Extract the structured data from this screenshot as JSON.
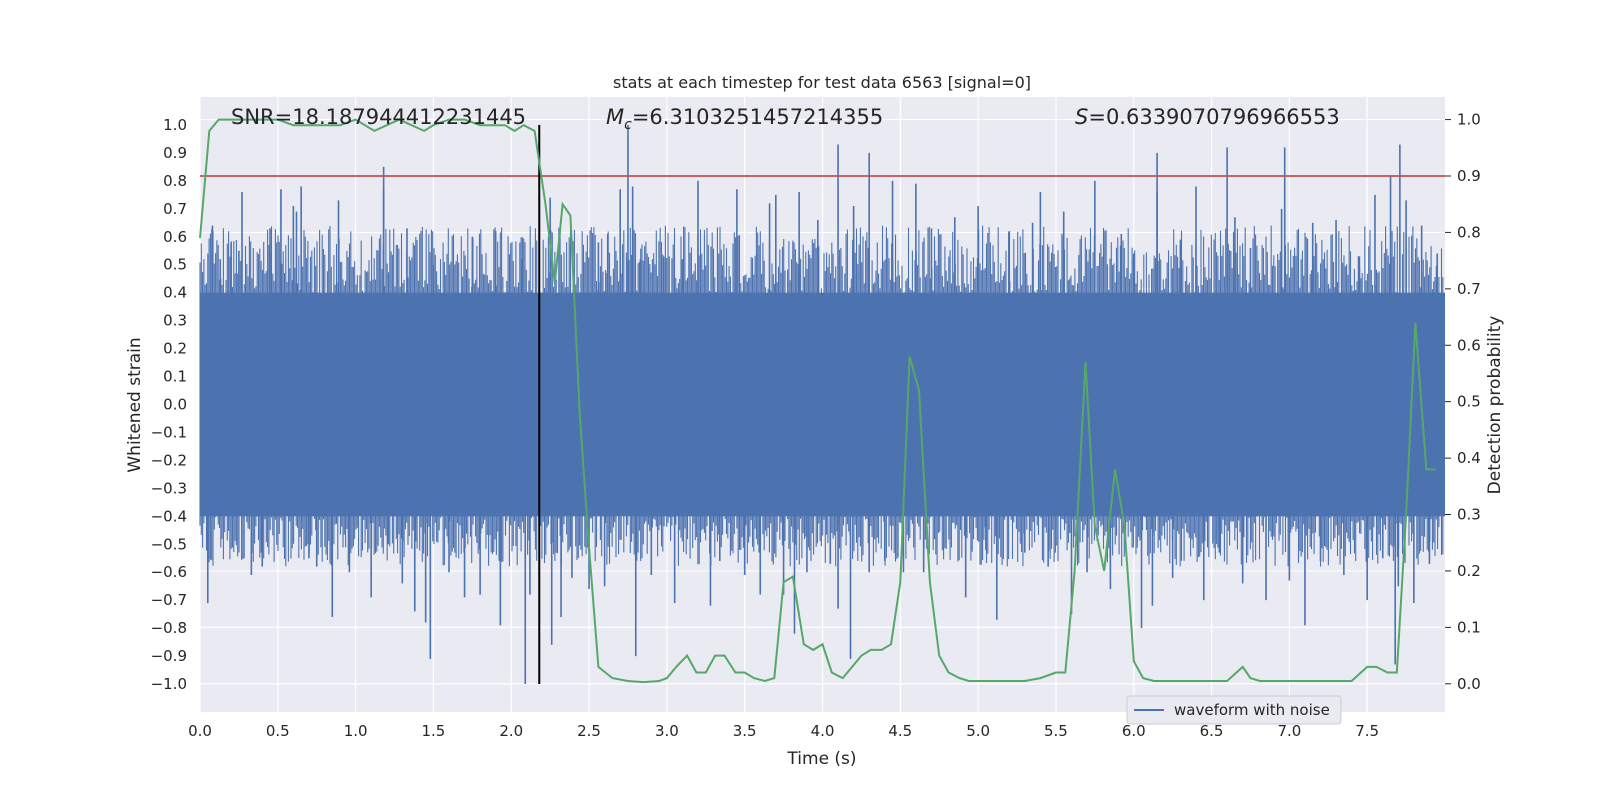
{
  "chart_data": {
    "type": "line",
    "title": "stats at each timestep for test data 6563 [signal=0]",
    "xlabel": "Time (s)",
    "ylabel_left": "Whitened strain",
    "ylabel_right": "Detection probability",
    "xlim": [
      0.0,
      8.0
    ],
    "ylim_left": [
      -1.1,
      1.1
    ],
    "ylim_right": [
      -0.05,
      1.04
    ],
    "x_ticks": [
      "0.0",
      "0.5",
      "1.0",
      "1.5",
      "2.0",
      "2.5",
      "3.0",
      "3.5",
      "4.0",
      "4.5",
      "5.0",
      "5.5",
      "6.0",
      "6.5",
      "7.0",
      "7.5"
    ],
    "y_ticks_left": [
      "1.0",
      "0.9",
      "0.8",
      "0.7",
      "0.6",
      "0.5",
      "0.4",
      "0.3",
      "0.2",
      "0.1",
      "0.0",
      "−0.1",
      "−0.2",
      "−0.3",
      "−0.4",
      "−0.5",
      "−0.6",
      "−0.7",
      "−0.8",
      "−0.9",
      "−1.0"
    ],
    "y_ticks_right": [
      "1.0",
      "0.9",
      "0.8",
      "0.7",
      "0.6",
      "0.5",
      "0.4",
      "0.3",
      "0.2",
      "0.1",
      "0.0"
    ],
    "annotations": {
      "snr": "SNR=18.187944412231445",
      "mc_symbol": "M",
      "mc_subscript": "c",
      "mc_value": "=6.3103251457214355",
      "s_symbol": "S",
      "s_value": "=0.6339070796966553"
    },
    "threshold_line": {
      "value": 0.9,
      "axis": "right",
      "color": "#c44e52"
    },
    "marker_line": {
      "x": 2.18,
      "color": "#000000"
    },
    "legend": {
      "label": "waveform with noise",
      "location": "lower-right"
    },
    "series": [
      {
        "name": "waveform with noise",
        "axis": "left",
        "color": "#4c72b0",
        "description": "dense noise band, core amplitude about ±0.4, spikes to about ±1.0",
        "core_amplitude": 0.4,
        "spikes": [
          {
            "t": 0.05,
            "v": -0.71
          },
          {
            "t": 0.08,
            "v": 0.64
          },
          {
            "t": 0.13,
            "v": 0.52
          },
          {
            "t": 0.2,
            "v": 0.58
          },
          {
            "t": 0.25,
            "v": 0.55
          },
          {
            "t": 0.27,
            "v": 0.76
          },
          {
            "t": 0.33,
            "v": -0.61
          },
          {
            "t": 0.4,
            "v": -0.58
          },
          {
            "t": 0.45,
            "v": 0.63
          },
          {
            "t": 0.52,
            "v": 0.77
          },
          {
            "t": 0.6,
            "v": 0.71
          },
          {
            "t": 0.62,
            "v": 0.69
          },
          {
            "t": 0.7,
            "v": -0.55
          },
          {
            "t": 0.75,
            "v": -0.58
          },
          {
            "t": 0.85,
            "v": -0.76
          },
          {
            "t": 0.89,
            "v": 0.73
          },
          {
            "t": 0.96,
            "v": -0.6
          },
          {
            "t": 1.1,
            "v": -0.69
          },
          {
            "t": 1.18,
            "v": 0.77
          },
          {
            "t": 1.21,
            "v": -0.5
          },
          {
            "t": 1.3,
            "v": -0.64
          },
          {
            "t": 1.33,
            "v": 0.63
          },
          {
            "t": 1.38,
            "v": -0.74
          },
          {
            "t": 1.45,
            "v": -0.78
          },
          {
            "t": 1.5,
            "v": 0.5
          },
          {
            "t": 1.6,
            "v": -0.6
          },
          {
            "t": 1.7,
            "v": -0.69
          },
          {
            "t": 1.75,
            "v": 0.6
          },
          {
            "t": 1.8,
            "v": -0.68
          },
          {
            "t": 1.9,
            "v": 0.62
          },
          {
            "t": 1.93,
            "v": -0.79
          },
          {
            "t": 2.07,
            "v": 0.52
          },
          {
            "t": 2.12,
            "v": -0.68
          },
          {
            "t": 2.25,
            "v": 0.74
          },
          {
            "t": 2.32,
            "v": -0.76
          },
          {
            "t": 2.39,
            "v": -0.62
          },
          {
            "t": 2.5,
            "v": -0.66
          },
          {
            "t": 2.56,
            "v": 0.58
          },
          {
            "t": 2.6,
            "v": -0.65
          },
          {
            "t": 2.62,
            "v": 0.61
          },
          {
            "t": 2.7,
            "v": 0.77
          },
          {
            "t": 2.78,
            "v": 0.78
          },
          {
            "t": 2.83,
            "v": 0.52
          },
          {
            "t": 2.9,
            "v": -0.61
          },
          {
            "t": 2.98,
            "v": 0.53
          },
          {
            "t": 3.05,
            "v": -0.71
          },
          {
            "t": 3.1,
            "v": 0.52
          },
          {
            "t": 3.2,
            "v": 0.8
          },
          {
            "t": 3.28,
            "v": -0.72
          },
          {
            "t": 3.34,
            "v": -0.56
          },
          {
            "t": 3.45,
            "v": 0.77
          },
          {
            "t": 3.5,
            "v": -0.61
          },
          {
            "t": 3.6,
            "v": -0.68
          },
          {
            "t": 3.66,
            "v": 0.72
          },
          {
            "t": 3.7,
            "v": 0.75
          },
          {
            "t": 3.75,
            "v": -0.68
          },
          {
            "t": 3.85,
            "v": 0.76
          },
          {
            "t": 3.9,
            "v": -0.6
          },
          {
            "t": 3.97,
            "v": 0.66
          },
          {
            "t": 4.05,
            "v": -0.57
          },
          {
            "t": 4.1,
            "v": -0.73
          },
          {
            "t": 4.2,
            "v": 0.71
          },
          {
            "t": 4.3,
            "v": -0.6
          },
          {
            "t": 4.4,
            "v": -0.56
          },
          {
            "t": 4.45,
            "v": 0.8
          },
          {
            "t": 4.52,
            "v": -0.6
          },
          {
            "t": 4.6,
            "v": 0.79
          },
          {
            "t": 4.7,
            "v": 0.63
          },
          {
            "t": 4.85,
            "v": 0.67
          },
          {
            "t": 4.92,
            "v": -0.69
          },
          {
            "t": 5.0,
            "v": 0.71
          },
          {
            "t": 5.05,
            "v": -0.52
          },
          {
            "t": 5.12,
            "v": -0.77
          },
          {
            "t": 5.2,
            "v": 0.62
          },
          {
            "t": 5.3,
            "v": -0.53
          },
          {
            "t": 5.35,
            "v": 0.65
          },
          {
            "t": 5.4,
            "v": 0.76
          },
          {
            "t": 5.45,
            "v": -0.58
          },
          {
            "t": 5.55,
            "v": 0.69
          },
          {
            "t": 5.6,
            "v": -0.75
          },
          {
            "t": 5.7,
            "v": -0.6
          },
          {
            "t": 5.75,
            "v": 0.8
          },
          {
            "t": 5.85,
            "v": -0.66
          },
          {
            "t": 5.92,
            "v": 0.61
          },
          {
            "t": 6.0,
            "v": 0.54
          },
          {
            "t": 6.05,
            "v": -0.8
          },
          {
            "t": 6.12,
            "v": -0.72
          },
          {
            "t": 6.15,
            "v": 0.76
          },
          {
            "t": 6.25,
            "v": -0.62
          },
          {
            "t": 6.3,
            "v": 0.59
          },
          {
            "t": 6.4,
            "v": 0.78
          },
          {
            "t": 6.45,
            "v": -0.7
          },
          {
            "t": 6.55,
            "v": -0.53
          },
          {
            "t": 6.65,
            "v": 0.67
          },
          {
            "t": 6.7,
            "v": -0.64
          },
          {
            "t": 6.75,
            "v": 0.56
          },
          {
            "t": 6.85,
            "v": -0.7
          },
          {
            "t": 6.95,
            "v": 0.7
          },
          {
            "t": 7.0,
            "v": -0.63
          },
          {
            "t": 7.1,
            "v": -0.79
          },
          {
            "t": 7.15,
            "v": 0.65
          },
          {
            "t": 7.2,
            "v": -0.56
          },
          {
            "t": 7.3,
            "v": 0.66
          },
          {
            "t": 7.35,
            "v": -0.61
          },
          {
            "t": 7.45,
            "v": 0.53
          },
          {
            "t": 7.5,
            "v": -0.7
          },
          {
            "t": 7.55,
            "v": 0.75
          },
          {
            "t": 7.6,
            "v": -0.55
          },
          {
            "t": 7.7,
            "v": -0.65
          },
          {
            "t": 7.75,
            "v": 0.73
          },
          {
            "t": 7.8,
            "v": -0.71
          },
          {
            "t": 7.85,
            "v": 0.64
          },
          {
            "t": 7.9,
            "v": -0.57
          },
          {
            "t": 7.95,
            "v": 0.54
          },
          {
            "t": 0.65,
            "v": 0.78
          },
          {
            "t": 1.18,
            "v": 0.85
          },
          {
            "t": 1.48,
            "v": -0.91
          },
          {
            "t": 2.09,
            "v": -1.0
          },
          {
            "t": 2.26,
            "v": -0.86
          },
          {
            "t": 2.75,
            "v": 1.0
          },
          {
            "t": 2.8,
            "v": -0.9
          },
          {
            "t": 3.82,
            "v": -0.82
          },
          {
            "t": 4.1,
            "v": 0.93
          },
          {
            "t": 4.18,
            "v": -0.91
          },
          {
            "t": 4.3,
            "v": 0.9
          },
          {
            "t": 4.65,
            "v": -0.6
          },
          {
            "t": 6.15,
            "v": 0.9
          },
          {
            "t": 6.6,
            "v": 0.92
          },
          {
            "t": 6.97,
            "v": 0.92
          },
          {
            "t": 7.65,
            "v": 0.82
          },
          {
            "t": 7.68,
            "v": -0.93
          },
          {
            "t": 7.71,
            "v": 0.93
          }
        ]
      },
      {
        "name": "detection probability",
        "axis": "right",
        "color": "#55a868",
        "x": [
          0.0,
          0.06,
          0.12,
          0.2,
          0.3,
          0.4,
          0.5,
          0.6,
          0.7,
          0.8,
          0.9,
          1.0,
          1.06,
          1.12,
          1.2,
          1.28,
          1.36,
          1.44,
          1.5,
          1.6,
          1.7,
          1.8,
          1.9,
          1.96,
          2.02,
          2.08,
          2.15,
          2.22,
          2.28,
          2.33,
          2.38,
          2.44,
          2.5,
          2.56,
          2.65,
          2.75,
          2.85,
          2.95,
          3.0,
          3.06,
          3.13,
          3.19,
          3.25,
          3.31,
          3.37,
          3.44,
          3.5,
          3.56,
          3.63,
          3.69,
          3.75,
          3.81,
          3.88,
          3.94,
          4.0,
          4.06,
          4.13,
          4.19,
          4.25,
          4.31,
          4.38,
          4.44,
          4.5,
          4.56,
          4.62,
          4.69,
          4.75,
          4.81,
          4.88,
          4.94,
          5.0,
          5.1,
          5.2,
          5.3,
          5.4,
          5.5,
          5.56,
          5.62,
          5.69,
          5.75,
          5.81,
          5.88,
          5.94,
          6.0,
          6.06,
          6.13,
          6.2,
          6.3,
          6.4,
          6.5,
          6.6,
          6.7,
          6.75,
          6.81,
          6.88,
          6.94,
          7.0,
          7.06,
          7.13,
          7.2,
          7.3,
          7.4,
          7.5,
          7.56,
          7.63,
          7.69,
          7.75,
          7.81,
          7.88,
          7.94
        ],
        "values": [
          0.79,
          0.98,
          1.0,
          1.0,
          1.0,
          1.0,
          1.0,
          0.99,
          0.99,
          0.99,
          0.99,
          1.0,
          0.99,
          0.98,
          0.99,
          1.0,
          0.99,
          0.98,
          0.99,
          1.0,
          1.0,
          0.99,
          0.99,
          0.99,
          0.98,
          0.99,
          0.98,
          0.85,
          0.71,
          0.85,
          0.83,
          0.48,
          0.24,
          0.03,
          0.01,
          0.005,
          0.003,
          0.005,
          0.01,
          0.03,
          0.05,
          0.02,
          0.02,
          0.05,
          0.05,
          0.02,
          0.02,
          0.01,
          0.005,
          0.01,
          0.18,
          0.19,
          0.07,
          0.06,
          0.07,
          0.02,
          0.01,
          0.03,
          0.05,
          0.06,
          0.06,
          0.07,
          0.18,
          0.58,
          0.52,
          0.18,
          0.05,
          0.02,
          0.01,
          0.005,
          0.005,
          0.005,
          0.005,
          0.005,
          0.01,
          0.02,
          0.02,
          0.2,
          0.57,
          0.28,
          0.2,
          0.38,
          0.28,
          0.04,
          0.01,
          0.005,
          0.005,
          0.005,
          0.005,
          0.005,
          0.005,
          0.03,
          0.01,
          0.005,
          0.005,
          0.005,
          0.005,
          0.005,
          0.005,
          0.005,
          0.005,
          0.005,
          0.03,
          0.03,
          0.02,
          0.02,
          0.3,
          0.64,
          0.38,
          0.38
        ]
      }
    ]
  }
}
